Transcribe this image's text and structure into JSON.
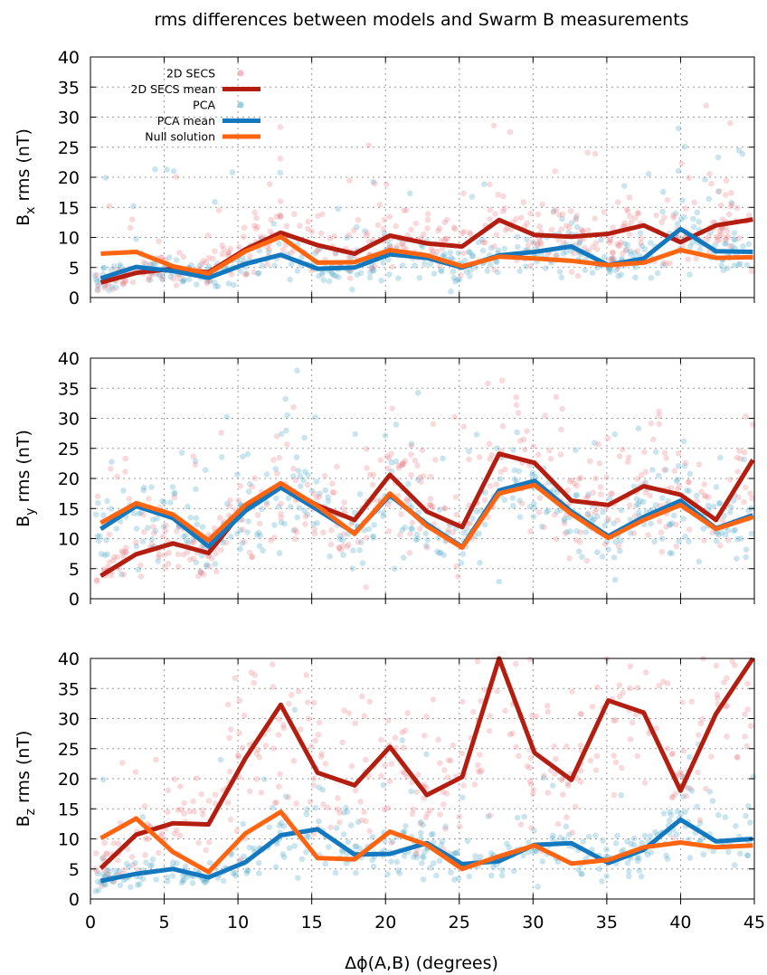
{
  "title": "rms differences between models and Swarm B measurements",
  "xlabel": "Δϕ(A,B) (degrees)",
  "legend": [
    {
      "label": "2D SECS",
      "kind": "points",
      "color": "#e8848a"
    },
    {
      "label": "2D SECS mean",
      "kind": "line",
      "color": "#b41e10"
    },
    {
      "label": "PCA",
      "kind": "points",
      "color": "#4fa8c8"
    },
    {
      "label": "PCA mean",
      "kind": "line",
      "color": "#1478be"
    },
    {
      "label": "Null solution",
      "kind": "line",
      "color": "#ff6410"
    }
  ],
  "chart_data": [
    {
      "type": "line",
      "component": "x",
      "ylabel": {
        "base": "B",
        "sub": "x",
        "rest": " rms (nT)"
      },
      "xlim": [
        0,
        45
      ],
      "ylim": [
        0,
        40
      ],
      "xticks": [
        0,
        5,
        10,
        15,
        20,
        25,
        30,
        35,
        40,
        45
      ],
      "yticks": [
        0,
        5,
        10,
        15,
        20,
        25,
        30,
        35,
        40
      ],
      "grid": true,
      "legend_position": "top-left",
      "x": [
        0.7,
        3.1,
        5.6,
        8.0,
        10.5,
        12.9,
        15.4,
        17.9,
        20.3,
        22.8,
        25.2,
        27.7,
        30.1,
        32.6,
        35.1,
        37.5,
        40.0,
        42.4,
        44.9
      ],
      "series": [
        {
          "name": "2D SECS mean",
          "color": "#b41e10",
          "values": [
            2.5,
            4.1,
            4.8,
            4.2,
            8.0,
            10.8,
            8.7,
            7.3,
            10.3,
            9.0,
            8.5,
            12.9,
            10.4,
            10.1,
            10.6,
            12.0,
            9.2,
            12.0,
            13.0
          ]
        },
        {
          "name": "PCA mean",
          "color": "#1478be",
          "values": [
            3.2,
            5.1,
            4.4,
            3.3,
            5.6,
            7.1,
            4.8,
            5.0,
            7.2,
            6.6,
            5.0,
            7.0,
            7.6,
            8.5,
            5.4,
            6.5,
            11.4,
            7.7,
            7.6
          ]
        },
        {
          "name": "Null solution",
          "color": "#ff6410",
          "values": [
            7.3,
            7.6,
            5.2,
            4.0,
            7.7,
            10.1,
            5.8,
            5.9,
            7.9,
            7.0,
            5.2,
            6.8,
            6.5,
            6.1,
            5.4,
            5.8,
            7.9,
            6.6,
            6.7
          ]
        }
      ]
    },
    {
      "type": "line",
      "component": "y",
      "ylabel": {
        "base": "B",
        "sub": "y",
        "rest": " rms (nT)"
      },
      "xlim": [
        0,
        45
      ],
      "ylim": [
        0,
        40
      ],
      "xticks": [
        0,
        5,
        10,
        15,
        20,
        25,
        30,
        35,
        40,
        45
      ],
      "yticks": [
        0,
        5,
        10,
        15,
        20,
        25,
        30,
        35,
        40
      ],
      "grid": true,
      "x": [
        0.7,
        3.1,
        5.6,
        8.0,
        10.5,
        12.9,
        15.4,
        17.9,
        20.3,
        22.8,
        25.2,
        27.7,
        30.1,
        32.6,
        35.1,
        37.5,
        40.0,
        42.4,
        44.9
      ],
      "series": [
        {
          "name": "2D SECS mean",
          "color": "#b41e10",
          "values": [
            3.8,
            7.4,
            9.2,
            7.6,
            15.2,
            18.9,
            15.5,
            13.1,
            20.6,
            14.5,
            11.9,
            24.1,
            22.6,
            16.3,
            15.6,
            18.7,
            17.3,
            13.1,
            23.1
          ]
        },
        {
          "name": "PCA mean",
          "color": "#1478be",
          "values": [
            11.6,
            15.4,
            13.4,
            8.7,
            14.6,
            18.5,
            14.8,
            10.9,
            17.2,
            12.4,
            8.6,
            18.0,
            19.6,
            14.5,
            10.4,
            13.6,
            16.3,
            11.7,
            13.9
          ]
        },
        {
          "name": "Null solution",
          "color": "#ff6410",
          "values": [
            12.6,
            15.9,
            14.0,
            9.7,
            15.6,
            19.2,
            15.4,
            10.8,
            17.5,
            12.1,
            8.5,
            17.5,
            18.9,
            14.1,
            10.1,
            13.1,
            15.6,
            11.6,
            13.6
          ]
        }
      ]
    },
    {
      "type": "line",
      "component": "z",
      "ylabel": {
        "base": "B",
        "sub": "z",
        "rest": " rms (nT)"
      },
      "xlim": [
        0,
        45
      ],
      "ylim": [
        0,
        40
      ],
      "xticks": [
        0,
        5,
        10,
        15,
        20,
        25,
        30,
        35,
        40,
        45
      ],
      "yticks": [
        0,
        5,
        10,
        15,
        20,
        25,
        30,
        35,
        40
      ],
      "grid": true,
      "x": [
        0.7,
        3.1,
        5.6,
        8.0,
        10.5,
        12.9,
        15.4,
        17.9,
        20.3,
        22.8,
        25.2,
        27.7,
        30.1,
        32.6,
        35.1,
        37.5,
        40.0,
        42.4,
        44.9
      ],
      "series": [
        {
          "name": "2D SECS mean",
          "color": "#b41e10",
          "values": [
            5.1,
            10.7,
            12.6,
            12.4,
            23.4,
            32.3,
            21.0,
            18.9,
            25.3,
            17.3,
            20.3,
            40.0,
            24.3,
            19.8,
            33.0,
            31.0,
            18.0,
            30.8,
            40.0
          ]
        },
        {
          "name": "PCA mean",
          "color": "#1478be",
          "values": [
            3.0,
            4.2,
            5.0,
            3.6,
            6.1,
            10.6,
            11.6,
            7.4,
            7.5,
            9.3,
            5.8,
            6.3,
            9.0,
            9.3,
            6.0,
            8.2,
            13.2,
            9.6,
            10.0
          ]
        },
        {
          "name": "Null solution",
          "color": "#ff6410",
          "values": [
            10.1,
            13.4,
            7.8,
            4.5,
            10.9,
            14.5,
            6.8,
            6.6,
            11.2,
            9.0,
            5.0,
            7.1,
            8.9,
            5.9,
            6.5,
            8.6,
            9.4,
            8.6,
            8.9
          ]
        }
      ]
    }
  ]
}
